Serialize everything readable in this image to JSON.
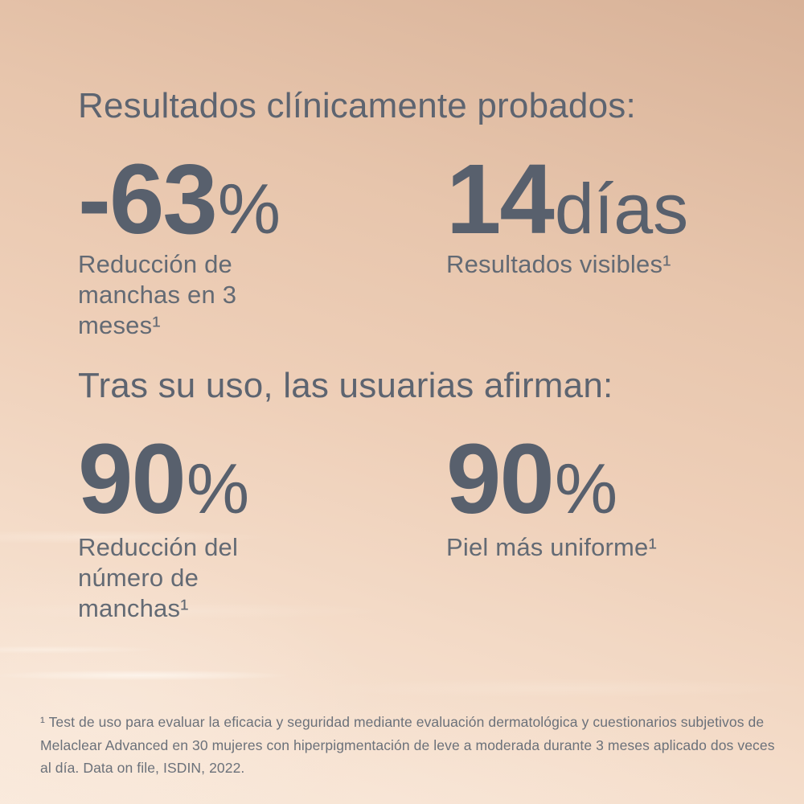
{
  "sections": [
    {
      "heading": "Resultados clínicamente probados:",
      "stats": [
        {
          "value": "-63",
          "suffix": "%",
          "label_lines": [
            "Reducción de",
            "manchas en 3",
            "meses¹"
          ]
        },
        {
          "value": "14",
          "suffix": "días",
          "label_lines": [
            "Resultados visibles¹"
          ]
        }
      ]
    },
    {
      "heading": "Tras su uso, las usuarias afirman:",
      "stats": [
        {
          "value": "90",
          "suffix": "%",
          "label_lines": [
            "Reducción del",
            "número de",
            "manchas¹"
          ]
        },
        {
          "value": "90",
          "suffix": "%",
          "label_lines": [
            "Piel más uniforme¹"
          ]
        }
      ]
    }
  ],
  "footnote": "¹ Test de uso para evaluar la eficacia y seguridad mediante evaluación dermatológica y cuestionarios subjetivos de Melaclear Advanced en 30 mujeres con hiperpigmentación de leve a moderada durante 3 meses aplicado dos veces al día. Data on file, ISDIN, 2022.",
  "colors": {
    "background_top": "#d8b298",
    "background_mid": "#eecfb8",
    "background_bottom": "#f9e9db",
    "stat_number": "#58606d",
    "heading_text": "#5d6470",
    "label_text": "#636a74",
    "footnote_text": "#6b717a"
  }
}
